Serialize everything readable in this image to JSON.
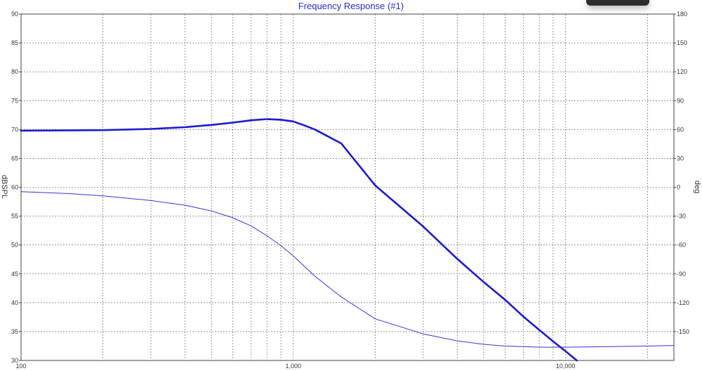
{
  "chart_data": {
    "type": "line",
    "title": "Frequency Response (#1)",
    "xlabel": "",
    "ylabel_left": "dBSPL",
    "ylabel_right": "deg",
    "x_scale": "log",
    "xlim": [
      100,
      25000
    ],
    "ylim_left": [
      30,
      90
    ],
    "ylim_right": [
      -180,
      180
    ],
    "x_tick_labels": [
      "100",
      "1,000",
      "10,000"
    ],
    "y_left_ticks": [
      30,
      35,
      40,
      45,
      50,
      55,
      60,
      65,
      70,
      75,
      80,
      85,
      90
    ],
    "y_right_ticks": [
      -150,
      -120,
      -90,
      -60,
      -30,
      0,
      30,
      60,
      90,
      120,
      150,
      180
    ],
    "grid": true,
    "series": [
      {
        "axis": "left",
        "color": "#1a1ad0",
        "weight": "bold",
        "points": [
          [
            100,
            69.8
          ],
          [
            200,
            69.9
          ],
          [
            300,
            70.1
          ],
          [
            400,
            70.4
          ],
          [
            500,
            70.8
          ],
          [
            600,
            71.2
          ],
          [
            700,
            71.6
          ],
          [
            800,
            71.8
          ],
          [
            900,
            71.7
          ],
          [
            1000,
            71.4
          ],
          [
            1100,
            70.7
          ],
          [
            1200,
            70.0
          ],
          [
            1500,
            67.6
          ],
          [
            2000,
            60.3
          ],
          [
            3000,
            53.2
          ],
          [
            4000,
            47.6
          ],
          [
            5000,
            43.6
          ],
          [
            6000,
            40.5
          ],
          [
            7000,
            37.6
          ],
          [
            8000,
            35.3
          ],
          [
            9000,
            33.3
          ],
          [
            10000,
            31.6
          ],
          [
            11000,
            30.0
          ]
        ]
      },
      {
        "axis": "right",
        "color": "#3333dd",
        "weight": "thin",
        "points": [
          [
            100,
            -4.5
          ],
          [
            150,
            -6.6
          ],
          [
            200,
            -9
          ],
          [
            300,
            -13.8
          ],
          [
            400,
            -18.6
          ],
          [
            500,
            -24.6
          ],
          [
            600,
            -31.8
          ],
          [
            700,
            -40.2
          ],
          [
            800,
            -50.4
          ],
          [
            900,
            -60.6
          ],
          [
            1000,
            -71.4
          ],
          [
            1200,
            -92.4
          ],
          [
            1500,
            -114
          ],
          [
            2000,
            -136.8
          ],
          [
            3000,
            -152.4
          ],
          [
            4000,
            -159.6
          ],
          [
            5000,
            -163.2
          ],
          [
            6000,
            -165
          ],
          [
            8000,
            -166.2
          ],
          [
            10000,
            -166.2
          ],
          [
            15000,
            -165.6
          ],
          [
            20000,
            -165
          ],
          [
            25000,
            -164.4
          ]
        ]
      }
    ]
  }
}
